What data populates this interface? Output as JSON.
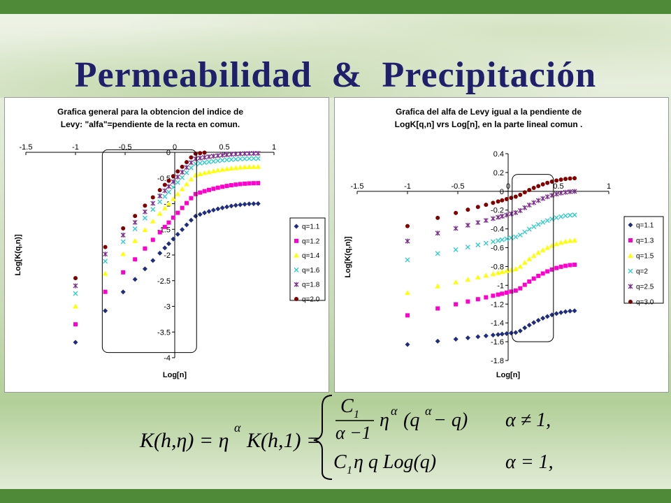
{
  "slide": {
    "title": "Permeabilidad  &  Precipitación",
    "formula": {
      "lhs": "K(h,η) = η",
      "lhs_exp": "α",
      "lhs_rest": "K(h,1) =",
      "case1_num": "C",
      "case1_num_sub": "1",
      "case1_den": "α −1",
      "case1_expr": "η",
      "case1_expr_exp": "α",
      "case1_tail": "(q",
      "case1_tail_exp": "α",
      "case1_tail_end": " − q)",
      "case1_cond": "α ≠ 1,",
      "case2_expr": "C",
      "case2_sub": "1",
      "case2_rest": " η q Log(q)",
      "case2_cond": "α = 1,"
    },
    "colors": {
      "top_bar": "#4f8a38",
      "title": "#1f1f6b"
    }
  },
  "chart_data": [
    {
      "type": "scatter",
      "title": [
        "Grafica general para la obtencion del indice de",
        "Levy: \"alfa\"=pendiente de la recta en comun."
      ],
      "xlabel": "Log[n]",
      "ylabel": "Log[K(q,n)]",
      "xlim": [
        -1.5,
        1
      ],
      "ylim": [
        -4,
        0
      ],
      "xticks": [
        -1.5,
        -1,
        -0.5,
        0,
        0.5,
        1
      ],
      "xtick_labels": [
        "-1.5",
        "-1",
        "-0.5",
        "0",
        "0.5",
        "1"
      ],
      "yticks": [
        0,
        -0.5,
        -1,
        -1.5,
        -2,
        -2.5,
        -3,
        -3.5,
        -4
      ],
      "ytick_labels": [
        "0",
        "-0.5",
        "-1",
        "-1.5",
        "-2",
        "-2.5",
        "-3",
        "-3.5",
        "-4"
      ],
      "legend": "right",
      "highlight_box": [
        -0.73,
        0.22,
        0.05,
        -3.9
      ],
      "series": [
        {
          "name": "q=1.1",
          "color": "#1f2d7a",
          "marker": "diamond",
          "start": [
            -1.0,
            -3.7
          ],
          "knee": [
            0.2,
            -1.25
          ],
          "end": [
            0.85,
            -1.0
          ]
        },
        {
          "name": "q=1.2",
          "color": "#ff00cc",
          "marker": "square",
          "start": [
            -1.0,
            -3.35
          ],
          "knee": [
            0.2,
            -0.82
          ],
          "end": [
            0.85,
            -0.6
          ]
        },
        {
          "name": "q=1.4",
          "color": "#ffff00",
          "marker": "triangle",
          "start": [
            -1.0,
            -3.0
          ],
          "knee": [
            0.2,
            -0.45
          ],
          "end": [
            0.85,
            -0.28
          ]
        },
        {
          "name": "q=1.6",
          "color": "#33cccc",
          "marker": "x",
          "start": [
            -1.0,
            -2.75
          ],
          "knee": [
            0.2,
            -0.23
          ],
          "end": [
            0.85,
            -0.12
          ]
        },
        {
          "name": "q=1.8",
          "color": "#7a2a8a",
          "marker": "star",
          "start": [
            -1.0,
            -2.6
          ],
          "knee": [
            0.2,
            -0.13
          ],
          "end": [
            0.85,
            -0.02
          ]
        },
        {
          "name": "q=2.0",
          "color": "#800000",
          "marker": "circle",
          "start": [
            -1.0,
            -2.45
          ],
          "knee": [
            0.2,
            -0.03
          ],
          "end": [
            0.85,
            0.05
          ]
        }
      ]
    },
    {
      "type": "scatter",
      "title": [
        "Grafica del alfa de Levy igual a la pendiente de",
        "LogK[q,n] vrs Log[n], en la parte lineal comun ."
      ],
      "xlabel": "Log[n]",
      "ylabel": "Log[K(q,n)]",
      "xlim": [
        -1.5,
        1
      ],
      "ylim": [
        -1.8,
        0.4
      ],
      "xticks": [
        -1.5,
        -1,
        -0.5,
        0,
        0.5,
        1
      ],
      "xtick_labels": [
        "-1.5",
        "-1",
        "-0.5",
        "0",
        "0.5",
        "1"
      ],
      "yticks": [
        0.4,
        0.2,
        0,
        -0.2,
        -0.4,
        -0.6,
        -0.8,
        -1,
        -1.2,
        -1.4,
        -1.6,
        -1.8
      ],
      "ytick_labels": [
        "0.4",
        "0.2",
        "0",
        "-0.2",
        "-0.4",
        "-0.6",
        "-0.8",
        "-1",
        "-1.2",
        "-1.4",
        "-1.6",
        "-1.8"
      ],
      "legend": "right",
      "highlight_box": [
        0.04,
        0.45,
        0.18,
        -1.6
      ],
      "series": [
        {
          "name": "q=1.1",
          "color": "#1f2d7a",
          "marker": "diamond",
          "start": [
            -1.0,
            -1.63
          ],
          "knee": [
            0.1,
            -1.5
          ],
          "end": [
            0.7,
            -1.27
          ]
        },
        {
          "name": "q=1.3",
          "color": "#ff00cc",
          "marker": "square",
          "start": [
            -1.0,
            -1.32
          ],
          "knee": [
            0.1,
            -1.05
          ],
          "end": [
            0.7,
            -0.78
          ]
        },
        {
          "name": "q=1.5",
          "color": "#ffff00",
          "marker": "triangle",
          "start": [
            -1.0,
            -1.08
          ],
          "knee": [
            0.1,
            -0.82
          ],
          "end": [
            0.7,
            -0.52
          ]
        },
        {
          "name": "q=2",
          "color": "#33cccc",
          "marker": "x",
          "start": [
            -1.0,
            -0.73
          ],
          "knee": [
            0.1,
            -0.48
          ],
          "end": [
            0.7,
            -0.25
          ]
        },
        {
          "name": "q=2.5",
          "color": "#7a2a8a",
          "marker": "star",
          "start": [
            -1.0,
            -0.53
          ],
          "knee": [
            0.1,
            -0.22
          ],
          "end": [
            0.7,
            0.0
          ]
        },
        {
          "name": "q=3.0",
          "color": "#800000",
          "marker": "circle",
          "start": [
            -1.0,
            -0.37
          ],
          "knee": [
            0.1,
            -0.05
          ],
          "end": [
            0.7,
            0.14
          ]
        }
      ]
    }
  ]
}
